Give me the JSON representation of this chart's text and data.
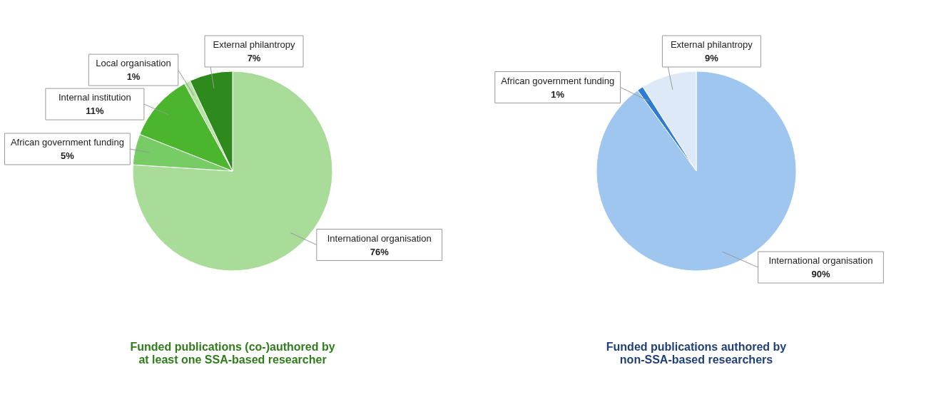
{
  "chart_data": [
    {
      "type": "pie",
      "title": "Funded publications (co-)authored by\nat least one SSA-based researcher",
      "categories": [
        "International organisation",
        "African government funding",
        "Internal institution",
        "Local organisation",
        "External philantropy"
      ],
      "values": [
        76,
        5,
        11,
        1,
        7
      ],
      "value_labels": [
        "76%",
        "5%",
        "11%",
        "1%",
        "7%"
      ],
      "colors": [
        "#a8dc98",
        "#78cc66",
        "#4cb52e",
        "#b5e6a0",
        "#2f8a1e"
      ]
    },
    {
      "type": "pie",
      "title": "Funded publications authored by\nnon-SSA-based researchers",
      "categories": [
        "International organisation",
        "African government funding",
        "External philantropy"
      ],
      "values": [
        90,
        1,
        9
      ],
      "value_labels": [
        "90%",
        "1%",
        "9%"
      ],
      "colors": [
        "#9fc6ee",
        "#2e7ad4",
        "#dde9f7"
      ]
    }
  ]
}
